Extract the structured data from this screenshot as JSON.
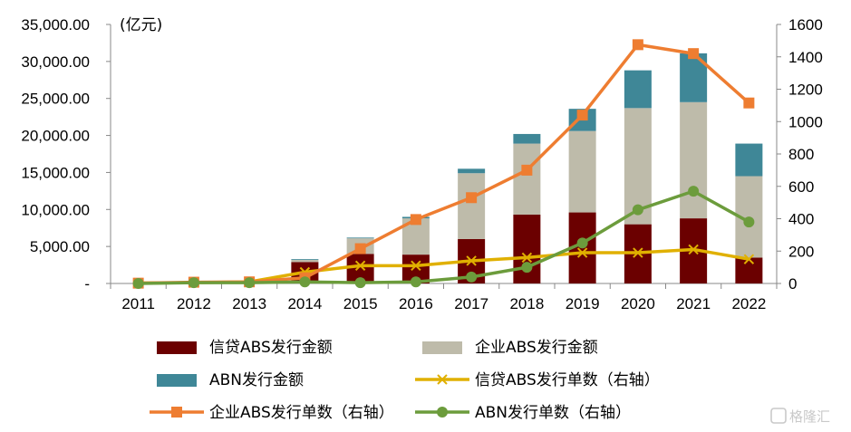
{
  "chart_data": {
    "type": "bar",
    "title": "",
    "unit_label": "(亿元)",
    "categories": [
      "2011",
      "2012",
      "2013",
      "2014",
      "2015",
      "2016",
      "2017",
      "2018",
      "2019",
      "2020",
      "2021",
      "2022"
    ],
    "y_left": {
      "ylim": [
        0,
        35000
      ],
      "ticks": [
        "-",
        "5,000.00",
        "10,000.00",
        "15,000.00",
        "20,000.00",
        "25,000.00",
        "30,000.00",
        "35,000.00"
      ]
    },
    "y_right": {
      "ylim": [
        0,
        1600
      ],
      "ticks": [
        "0",
        "200",
        "400",
        "600",
        "800",
        "1000",
        "1200",
        "1400",
        "1600"
      ]
    },
    "bar_series": [
      {
        "name": "信贷ABS发行金额",
        "color": "#6b0000",
        "values": [
          0,
          200,
          250,
          2900,
          4000,
          3900,
          6000,
          9300,
          9600,
          8000,
          8800,
          3500
        ]
      },
      {
        "name": "企业ABS发行金额",
        "color": "#bebbaa",
        "values": [
          0,
          50,
          100,
          300,
          2100,
          4900,
          8900,
          9600,
          11000,
          15700,
          15700,
          11000
        ]
      },
      {
        "name": "ABN发行金额",
        "color": "#3f8797",
        "values": [
          0,
          0,
          0,
          100,
          100,
          200,
          600,
          1300,
          3000,
          5100,
          6600,
          4400
        ]
      }
    ],
    "line_series": [
      {
        "name": "信贷ABS发行单数（右轴）",
        "color": "#e0b000",
        "marker": "x",
        "values": [
          3,
          5,
          10,
          70,
          110,
          110,
          140,
          160,
          190,
          190,
          210,
          150
        ]
      },
      {
        "name": "企业ABS发行单数（右轴）",
        "color": "#ee7d31",
        "marker": "square",
        "values": [
          2,
          8,
          10,
          35,
          215,
          395,
          530,
          700,
          1040,
          1475,
          1420,
          1115
        ]
      },
      {
        "name": "ABN发行单数（右轴）",
        "color": "#6c9c3c",
        "marker": "circle",
        "values": [
          0,
          5,
          5,
          10,
          5,
          10,
          40,
          100,
          250,
          455,
          570,
          380
        ]
      }
    ],
    "legend": {
      "position": "bottom",
      "order": [
        "信贷ABS发行金额",
        "企业ABS发行金额",
        "ABN发行金额",
        "信贷ABS发行单数（右轴）",
        "企业ABS发行单数（右轴）",
        "ABN发行单数（右轴）"
      ]
    },
    "grid": false
  },
  "watermark": {
    "text": "格隆汇",
    "icon": "glh-logo-icon"
  }
}
